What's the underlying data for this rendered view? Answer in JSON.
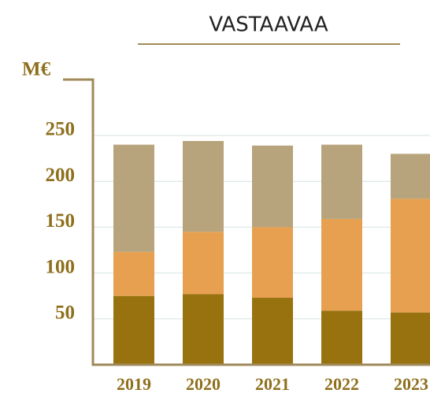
{
  "chart_data": {
    "type": "stacked_bar",
    "title": "VASTAAVAA",
    "y_label": "M€",
    "categories": [
      "2019",
      "2020",
      "2021",
      "2022",
      "2023"
    ],
    "series": [
      {
        "color": "#98720f",
        "values": [
          75,
          77,
          73,
          59,
          57
        ]
      },
      {
        "color": "#e6a050",
        "values": [
          48,
          68,
          77,
          100,
          124
        ]
      },
      {
        "color": "#b8a47c",
        "values": [
          117,
          99,
          89,
          81,
          49
        ]
      }
    ],
    "ylim": [
      0,
      311
    ],
    "yticks": [
      50,
      100,
      150,
      200,
      250
    ],
    "grid": true
  }
}
